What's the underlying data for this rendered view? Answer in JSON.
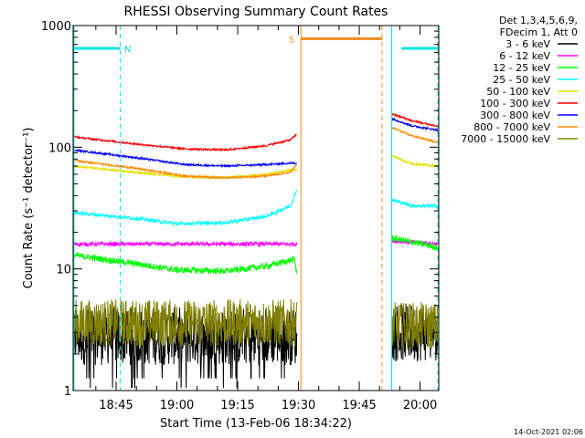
{
  "title": "RHESSI Observing Summary Count Rates",
  "xlabel": "Start Time (13-Feb-06 18:34:22)",
  "ylabel": "Count Rate (s⁻¹ detector⁻¹)",
  "timestamp": "14-Oct-2021 02:06",
  "legend": {
    "header_line1": "Det 1,3,4,5,6,9,",
    "header_line2": "FDecim 1, Att 0"
  },
  "flags": {
    "n_label": "N",
    "s_label": "S",
    "colors": {
      "night": "#00e5e5",
      "saa": "#f28c1a"
    }
  },
  "chart_data": {
    "type": "line",
    "title": "RHESSI Observing Summary Count Rates",
    "xlabel": "Start Time (13-Feb-06 18:34:22)",
    "ylabel": "Count Rate (s⁻¹ detector⁻¹)",
    "x_unit": "minutes after 18:00",
    "xlim": [
      34.4,
      124.6
    ],
    "ylim": [
      1,
      1000
    ],
    "yscale": "log",
    "xticks": [
      {
        "v": 45,
        "label": "18:45"
      },
      {
        "v": 60,
        "label": "19:00"
      },
      {
        "v": 75,
        "label": "19:15"
      },
      {
        "v": 90,
        "label": "19:30"
      },
      {
        "v": 105,
        "label": "19:45"
      },
      {
        "v": 120,
        "label": "20:00"
      }
    ],
    "yticks": [
      {
        "v": 1,
        "label": "1"
      },
      {
        "v": 10,
        "label": "10"
      },
      {
        "v": 100,
        "label": "100"
      },
      {
        "v": 1000,
        "label": "1000"
      }
    ],
    "legend_position": "right",
    "gaps": [
      [
        89.6,
        113.0
      ]
    ],
    "series": [
      {
        "name": "3 - 6 keV",
        "color": "#000000",
        "baseline": [
          [
            34.4,
            2.8
          ],
          [
            89.6,
            2.8
          ],
          [
            113.0,
            3.0
          ],
          [
            124.4,
            3.0
          ]
        ],
        "noise": 0.55,
        "spikes": true
      },
      {
        "name": "6 - 12 keV",
        "color": "#ff00ff",
        "baseline": [
          [
            34.4,
            16
          ],
          [
            89.6,
            16
          ],
          [
            113.0,
            17
          ],
          [
            124.4,
            16
          ]
        ],
        "noise": 0.04
      },
      {
        "name": "12 - 25 keV",
        "color": "#00ff00",
        "baseline": [
          [
            34.4,
            13
          ],
          [
            50,
            11
          ],
          [
            60,
            9.8
          ],
          [
            72,
            9.6
          ],
          [
            82,
            10.5
          ],
          [
            89.0,
            12
          ],
          [
            89.6,
            9
          ],
          [
            113.0,
            18
          ],
          [
            124.4,
            15
          ]
        ],
        "noise": 0.06
      },
      {
        "name": "25 - 50 keV",
        "color": "#00ffff",
        "baseline": [
          [
            34.4,
            29
          ],
          [
            50,
            26
          ],
          [
            60,
            23.5
          ],
          [
            72,
            24
          ],
          [
            82,
            27
          ],
          [
            88,
            33
          ],
          [
            89.6,
            45
          ],
          [
            113.0,
            37
          ],
          [
            118,
            33
          ],
          [
            124.4,
            33
          ]
        ],
        "noise": 0.035
      },
      {
        "name": "50 - 100 keV",
        "color": "#e0e000",
        "baseline": [
          [
            34.4,
            70
          ],
          [
            50,
            62
          ],
          [
            62,
            57
          ],
          [
            72,
            56
          ],
          [
            82,
            60
          ],
          [
            88,
            65
          ],
          [
            113.0,
            85
          ],
          [
            118,
            73
          ],
          [
            124.4,
            70
          ]
        ],
        "noise": 0.02
      },
      {
        "name": "100 - 300 keV",
        "color": "#ff0000",
        "baseline": [
          [
            34.4,
            122
          ],
          [
            50,
            106
          ],
          [
            62,
            97
          ],
          [
            72,
            95
          ],
          [
            82,
            103
          ],
          [
            88,
            115
          ],
          [
            89.6,
            128
          ],
          [
            113.0,
            188
          ],
          [
            118,
            165
          ],
          [
            124.4,
            148
          ]
        ],
        "noise": 0.018
      },
      {
        "name": "300 - 800 keV",
        "color": "#0000ff",
        "baseline": [
          [
            34.4,
            95
          ],
          [
            50,
            82
          ],
          [
            62,
            72
          ],
          [
            72,
            70
          ],
          [
            82,
            72
          ],
          [
            88,
            74
          ],
          [
            113.0,
            172
          ],
          [
            118,
            150
          ],
          [
            124.4,
            138
          ]
        ],
        "noise": 0.018
      },
      {
        "name": "800 - 7000 keV",
        "color": "#ff8800",
        "baseline": [
          [
            34.4,
            78
          ],
          [
            50,
            67
          ],
          [
            62,
            58
          ],
          [
            72,
            56
          ],
          [
            82,
            58
          ],
          [
            88,
            62
          ],
          [
            89.6,
            72
          ],
          [
            113.0,
            145
          ],
          [
            118,
            124
          ],
          [
            124.4,
            110
          ]
        ],
        "noise": 0.018
      },
      {
        "name": "7000 - 15000 keV",
        "color": "#808000",
        "baseline": [
          [
            34.4,
            3.6
          ],
          [
            89.6,
            3.6
          ],
          [
            113.0,
            3.4
          ],
          [
            124.4,
            3.4
          ]
        ],
        "noise": 0.45
      }
    ],
    "flag_bars": [
      {
        "label": "N",
        "y": 650,
        "segments": [
          [
            34.4,
            46.0
          ],
          [
            115.4,
            124.6
          ]
        ],
        "color": "#00e5e5"
      },
      {
        "label": "S",
        "y": 780,
        "segments": [
          [
            90.6,
            110.6
          ]
        ],
        "color": "#f28c1a"
      }
    ],
    "vlines": [
      {
        "x": 34.6,
        "style": "solid",
        "color": "#00e5e5"
      },
      {
        "x": 46.0,
        "style": "dashed",
        "color": "#00e5e5"
      },
      {
        "x": 90.6,
        "style": "solid",
        "color": "#f28c1a"
      },
      {
        "x": 110.6,
        "style": "dashed",
        "color": "#f28c1a"
      },
      {
        "x": 113.0,
        "style": "solid",
        "color": "#00e5e5"
      },
      {
        "x": 124.4,
        "style": "dashed",
        "color": "#00e5e5"
      }
    ]
  }
}
